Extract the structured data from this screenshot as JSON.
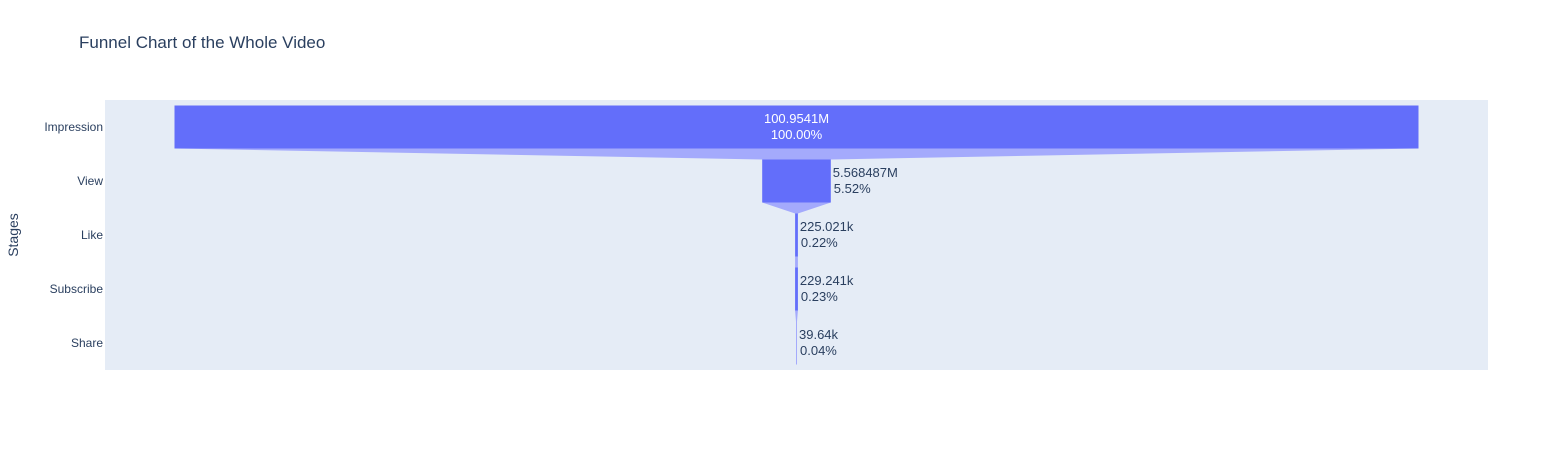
{
  "chart_data": {
    "type": "funnel",
    "title": "Funnel Chart of the Whole Video",
    "ylabel": "Stages",
    "stages": [
      "Impression",
      "View",
      "Like",
      "Subscribe",
      "Share"
    ],
    "values": [
      100954100,
      5568487,
      225021,
      229241,
      39640
    ],
    "value_labels": [
      "100.9541M",
      "5.568487M",
      "225.021k",
      "229.241k",
      "39.64k"
    ],
    "percent_labels": [
      "100.00%",
      "5.52%",
      "0.22%",
      "0.23%",
      "0.04%"
    ],
    "grid": false,
    "legend": "none"
  },
  "colors": {
    "bar": "#636efa",
    "connector": "#a4aafc",
    "plot_background": "#e5ecf6",
    "text_dark": "#2a3f5f",
    "text_light": "#ffffff"
  }
}
